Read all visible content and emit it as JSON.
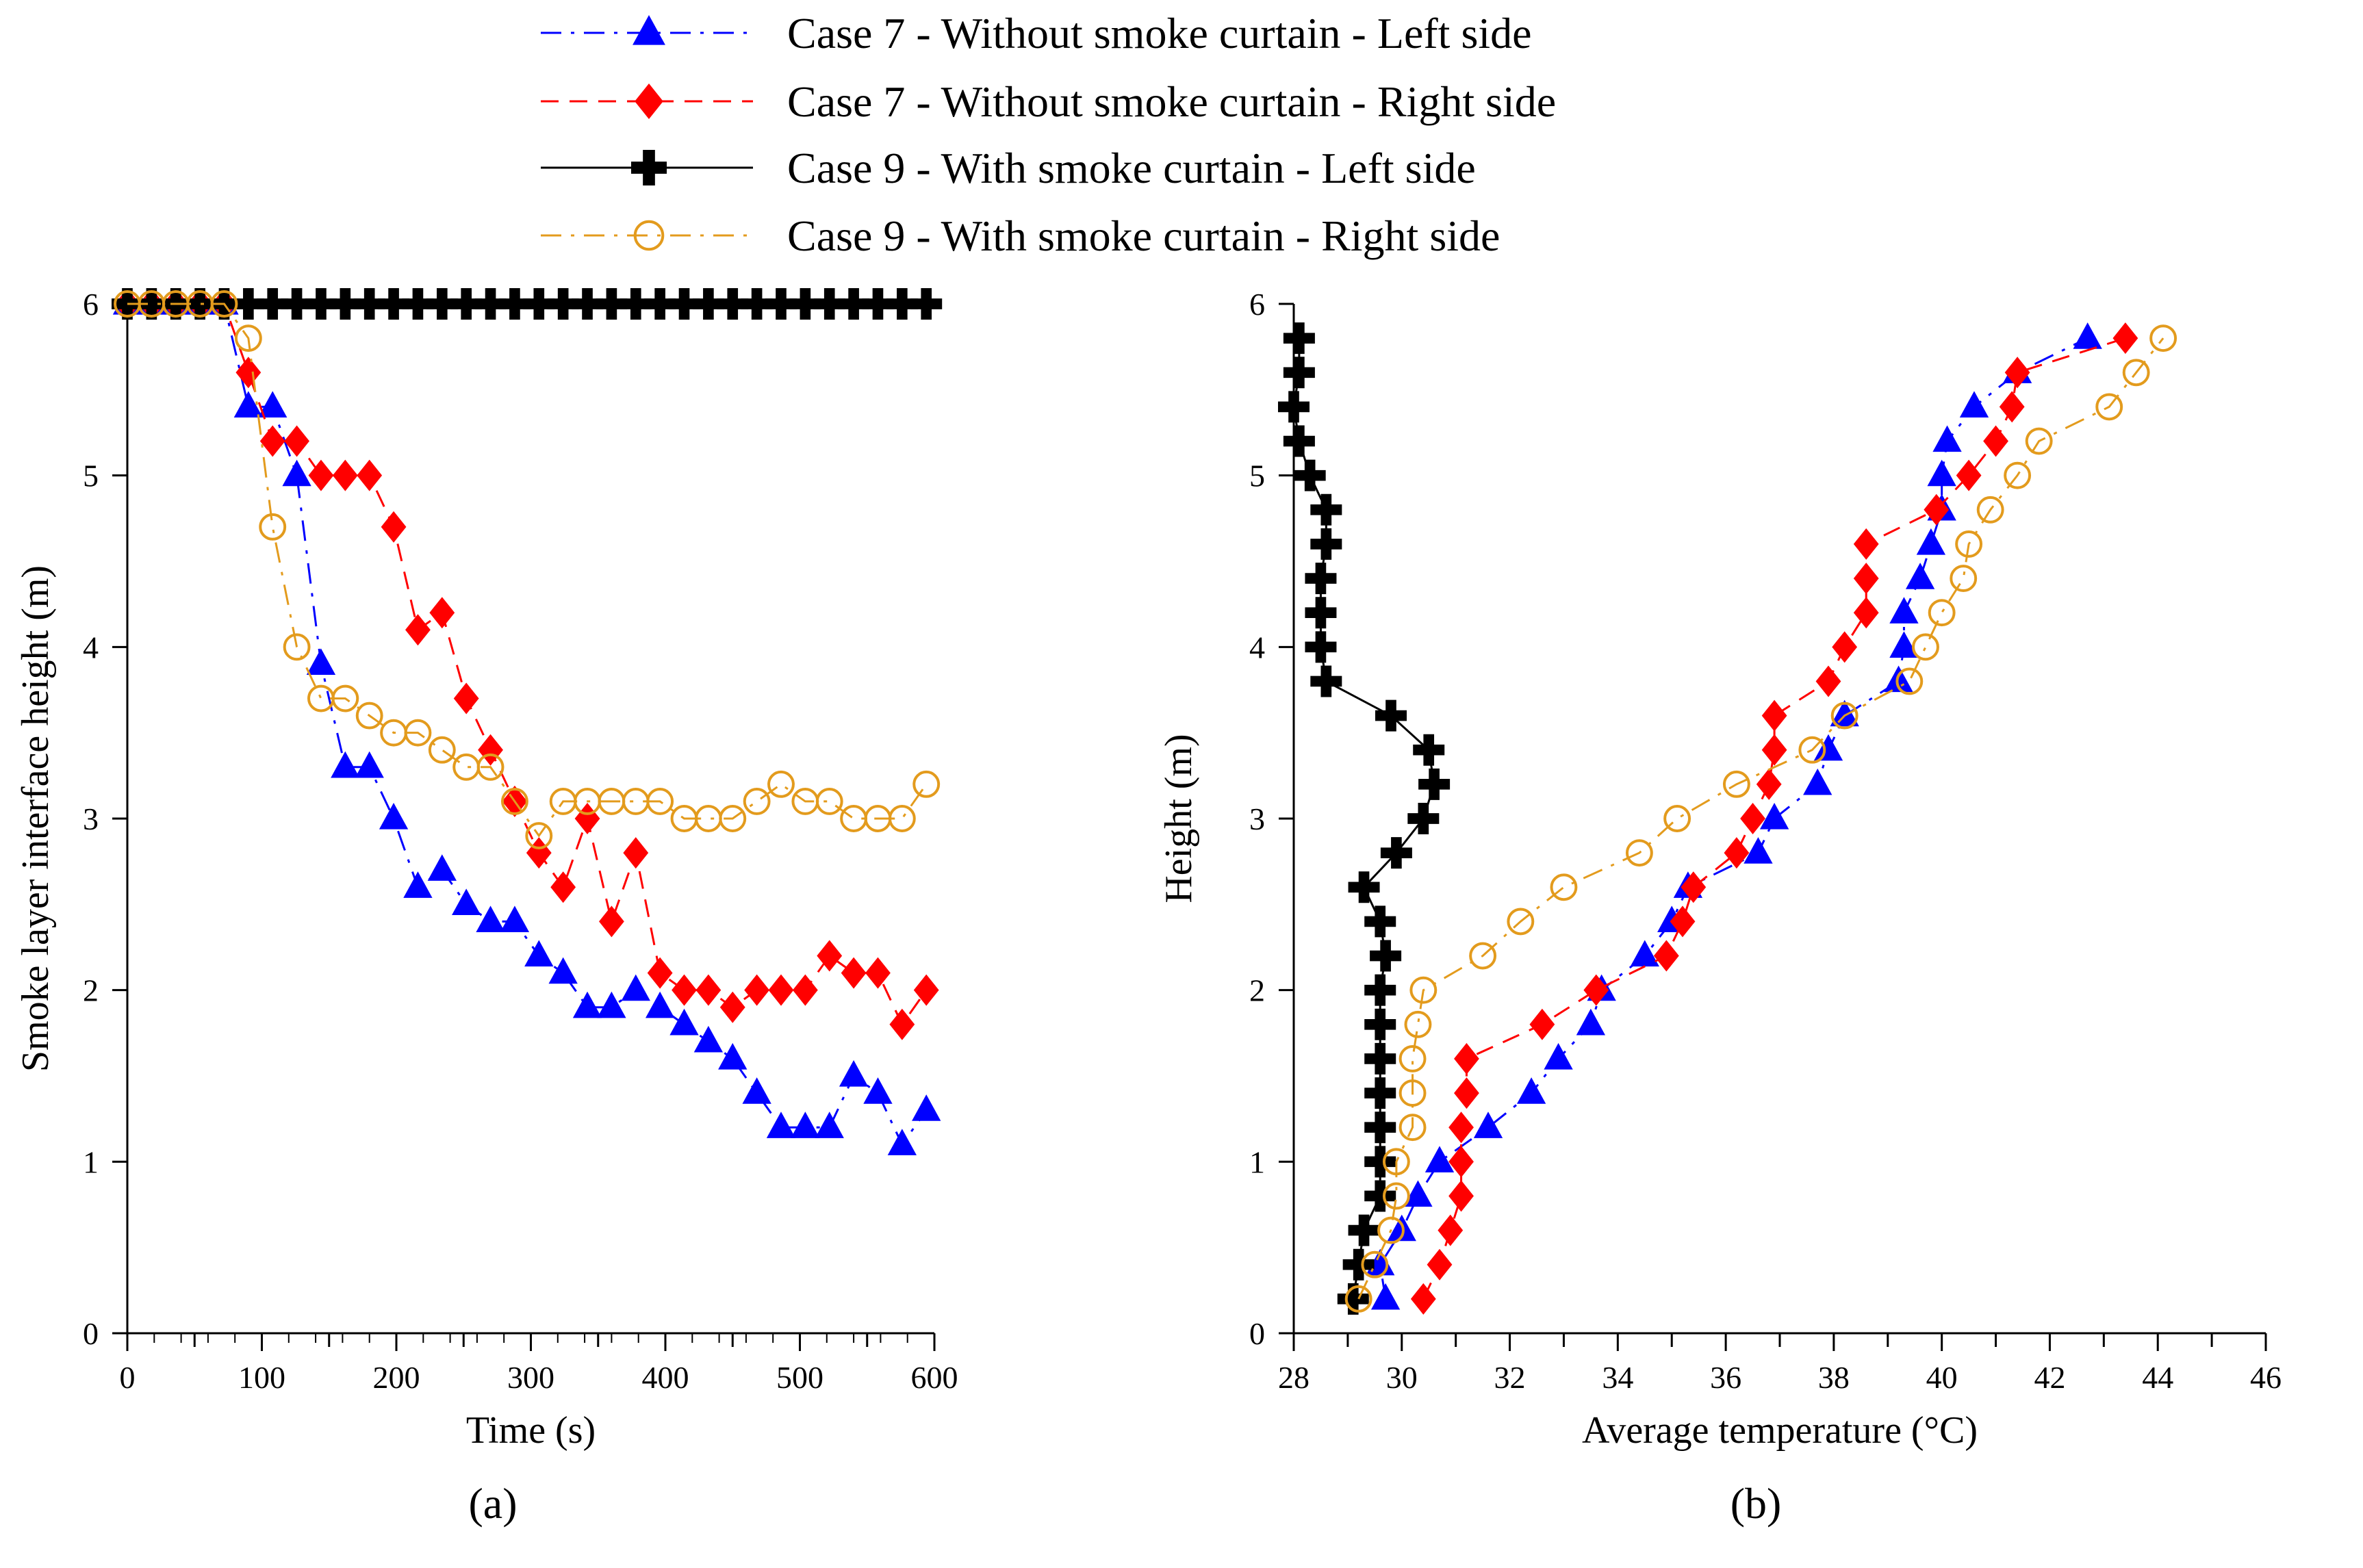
{
  "legend": [
    {
      "label": "Case 7 - Without smoke curtain - Left side",
      "color": "#0000ff",
      "marker": "triangle",
      "dash": "dashdot"
    },
    {
      "label": "Case 7 - Without smoke curtain - Right side",
      "color": "#ff0000",
      "marker": "diamond",
      "dash": "dash"
    },
    {
      "label": "Case 9 - With smoke curtain - Left side",
      "color": "#000000",
      "marker": "plus",
      "dash": "solid"
    },
    {
      "label": "Case 9 - With smoke curtain - Right side",
      "color": "#e39b1d",
      "marker": "circle",
      "dash": "dashdot"
    }
  ],
  "chart_data": [
    {
      "type": "line",
      "panel_label": "(a)",
      "xlabel": "Time (s)",
      "ylabel": "Smoke layer interface height (m)",
      "xlim": [
        0,
        600
      ],
      "ylim": [
        0,
        6
      ],
      "xticks": [
        "0",
        "100",
        "200",
        "300",
        "400",
        "500",
        "600"
      ],
      "yticks": [
        "0",
        "1",
        "2",
        "3",
        "4",
        "5",
        "6"
      ],
      "grid": false,
      "series": [
        {
          "name": "Case 7 - Without smoke curtain - Left side",
          "x": [
            0,
            18,
            36,
            54,
            72,
            90,
            108,
            126,
            144,
            162,
            180,
            198,
            216,
            234,
            252,
            270,
            288,
            306,
            324,
            342,
            360,
            378,
            396,
            414,
            432,
            450,
            468,
            486,
            504,
            522,
            540,
            558,
            576,
            594
          ],
          "y": [
            6,
            6,
            6,
            6,
            6,
            5.4,
            5.4,
            5.0,
            3.9,
            3.3,
            3.3,
            3.0,
            2.6,
            2.7,
            2.5,
            2.4,
            2.4,
            2.2,
            2.1,
            1.9,
            1.9,
            2.0,
            1.9,
            1.8,
            1.7,
            1.6,
            1.4,
            1.2,
            1.2,
            1.2,
            1.5,
            1.4,
            1.1,
            1.3
          ]
        },
        {
          "name": "Case 7 - Without smoke curtain - Right side",
          "x": [
            0,
            18,
            36,
            54,
            72,
            90,
            108,
            126,
            144,
            162,
            180,
            198,
            216,
            234,
            252,
            270,
            288,
            306,
            324,
            342,
            360,
            378,
            396,
            414,
            432,
            450,
            468,
            486,
            504,
            522,
            540,
            558,
            576,
            594
          ],
          "y": [
            6,
            6,
            6,
            6,
            6,
            5.6,
            5.2,
            5.2,
            5.0,
            5.0,
            5.0,
            4.7,
            4.1,
            4.2,
            3.7,
            3.4,
            3.1,
            2.8,
            2.6,
            3.0,
            2.4,
            2.8,
            2.1,
            2.0,
            2.0,
            1.9,
            2.0,
            2.0,
            2.0,
            2.2,
            2.1,
            2.1,
            1.8,
            2.0
          ]
        },
        {
          "name": "Case 9 - With smoke curtain - Left side",
          "x": [
            0,
            18,
            36,
            54,
            72,
            90,
            108,
            126,
            144,
            162,
            180,
            198,
            216,
            234,
            252,
            270,
            288,
            306,
            324,
            342,
            360,
            378,
            396,
            414,
            432,
            450,
            468,
            486,
            504,
            522,
            540,
            558,
            576,
            594
          ],
          "y": [
            6,
            6,
            6,
            6,
            6,
            6,
            6,
            6,
            6,
            6,
            6,
            6,
            6,
            6,
            6,
            6,
            6,
            6,
            6,
            6,
            6,
            6,
            6,
            6,
            6,
            6,
            6,
            6,
            6,
            6,
            6,
            6,
            6,
            6
          ]
        },
        {
          "name": "Case 9 - With smoke curtain - Right side",
          "x": [
            0,
            18,
            36,
            54,
            72,
            90,
            108,
            126,
            144,
            162,
            180,
            198,
            216,
            234,
            252,
            270,
            288,
            306,
            324,
            342,
            360,
            378,
            396,
            414,
            432,
            450,
            468,
            486,
            504,
            522,
            540,
            558,
            576,
            594
          ],
          "y": [
            6,
            6,
            6,
            6,
            6,
            5.8,
            4.7,
            4.0,
            3.7,
            3.7,
            3.6,
            3.5,
            3.5,
            3.4,
            3.3,
            3.3,
            3.1,
            2.9,
            3.1,
            3.1,
            3.1,
            3.1,
            3.1,
            3.0,
            3.0,
            3.0,
            3.1,
            3.2,
            3.1,
            3.1,
            3.0,
            3.0,
            3.0,
            3.2
          ]
        }
      ]
    },
    {
      "type": "line",
      "panel_label": "(b)",
      "xlabel": "Average temperature (°C)",
      "ylabel": "Height (m)",
      "xlim": [
        28,
        46
      ],
      "ylim": [
        0,
        6
      ],
      "xticks": [
        "28",
        "30",
        "32",
        "34",
        "36",
        "38",
        "40",
        "42",
        "44",
        "46"
      ],
      "yticks": [
        "0",
        "1",
        "2",
        "3",
        "4",
        "5",
        "6"
      ],
      "grid": false,
      "series": [
        {
          "name": "Case 7 - Without smoke curtain - Left side",
          "y": [
            0.2,
            0.4,
            0.6,
            0.8,
            1.0,
            1.2,
            1.4,
            1.6,
            1.8,
            2.0,
            2.2,
            2.4,
            2.6,
            2.8,
            3.0,
            3.2,
            3.4,
            3.6,
            3.8,
            4.0,
            4.2,
            4.4,
            4.6,
            4.8,
            5.0,
            5.2,
            5.4,
            5.6,
            5.8
          ],
          "x": [
            29.7,
            29.6,
            30.0,
            30.3,
            30.7,
            31.6,
            32.4,
            32.9,
            33.5,
            33.7,
            34.5,
            35.0,
            35.3,
            36.6,
            36.9,
            37.7,
            37.9,
            38.2,
            39.2,
            39.3,
            39.3,
            39.6,
            39.8,
            40.0,
            40.0,
            40.1,
            40.6,
            41.4,
            42.7
          ]
        },
        {
          "name": "Case 7 - Without smoke curtain - Right side",
          "y": [
            0.2,
            0.4,
            0.6,
            0.8,
            1.0,
            1.2,
            1.4,
            1.6,
            1.8,
            2.0,
            2.2,
            2.4,
            2.6,
            2.8,
            3.0,
            3.2,
            3.4,
            3.6,
            3.8,
            4.0,
            4.2,
            4.4,
            4.6,
            4.8,
            5.0,
            5.2,
            5.4,
            5.6,
            5.8
          ],
          "x": [
            30.4,
            30.7,
            30.9,
            31.1,
            31.1,
            31.1,
            31.2,
            31.2,
            32.6,
            33.6,
            34.9,
            35.2,
            35.4,
            36.2,
            36.5,
            36.8,
            36.9,
            36.9,
            37.9,
            38.2,
            38.6,
            38.6,
            38.6,
            39.9,
            40.5,
            41.0,
            41.3,
            41.4,
            43.4
          ]
        },
        {
          "name": "Case 9 - With smoke curtain - Left side",
          "y": [
            0.2,
            0.4,
            0.6,
            0.8,
            1.0,
            1.2,
            1.4,
            1.6,
            1.8,
            2.0,
            2.2,
            2.4,
            2.6,
            2.8,
            3.0,
            3.2,
            3.4,
            3.6,
            3.8,
            4.0,
            4.2,
            4.4,
            4.6,
            4.8,
            5.0,
            5.2,
            5.4,
            5.6,
            5.8
          ],
          "x": [
            29.1,
            29.2,
            29.3,
            29.6,
            29.6,
            29.6,
            29.6,
            29.6,
            29.6,
            29.6,
            29.7,
            29.6,
            29.3,
            29.9,
            30.4,
            30.6,
            30.5,
            29.8,
            28.6,
            28.5,
            28.5,
            28.5,
            28.6,
            28.6,
            28.3,
            28.1,
            28.0,
            28.1,
            28.1
          ]
        },
        {
          "name": "Case 9 - With smoke curtain - Right side",
          "y": [
            0.2,
            0.4,
            0.6,
            0.8,
            1.0,
            1.2,
            1.4,
            1.6,
            1.8,
            2.0,
            2.2,
            2.4,
            2.6,
            2.8,
            3.0,
            3.2,
            3.4,
            3.6,
            3.8,
            4.0,
            4.2,
            4.4,
            4.6,
            4.8,
            5.0,
            5.2,
            5.4,
            5.6,
            5.8
          ],
          "x": [
            29.2,
            29.5,
            29.8,
            29.9,
            29.9,
            30.2,
            30.2,
            30.2,
            30.3,
            30.4,
            31.5,
            32.2,
            33.0,
            34.4,
            35.1,
            36.2,
            37.6,
            38.2,
            39.4,
            39.7,
            40.0,
            40.4,
            40.5,
            40.9,
            41.4,
            41.8,
            43.1,
            43.6,
            44.1
          ]
        }
      ]
    }
  ]
}
